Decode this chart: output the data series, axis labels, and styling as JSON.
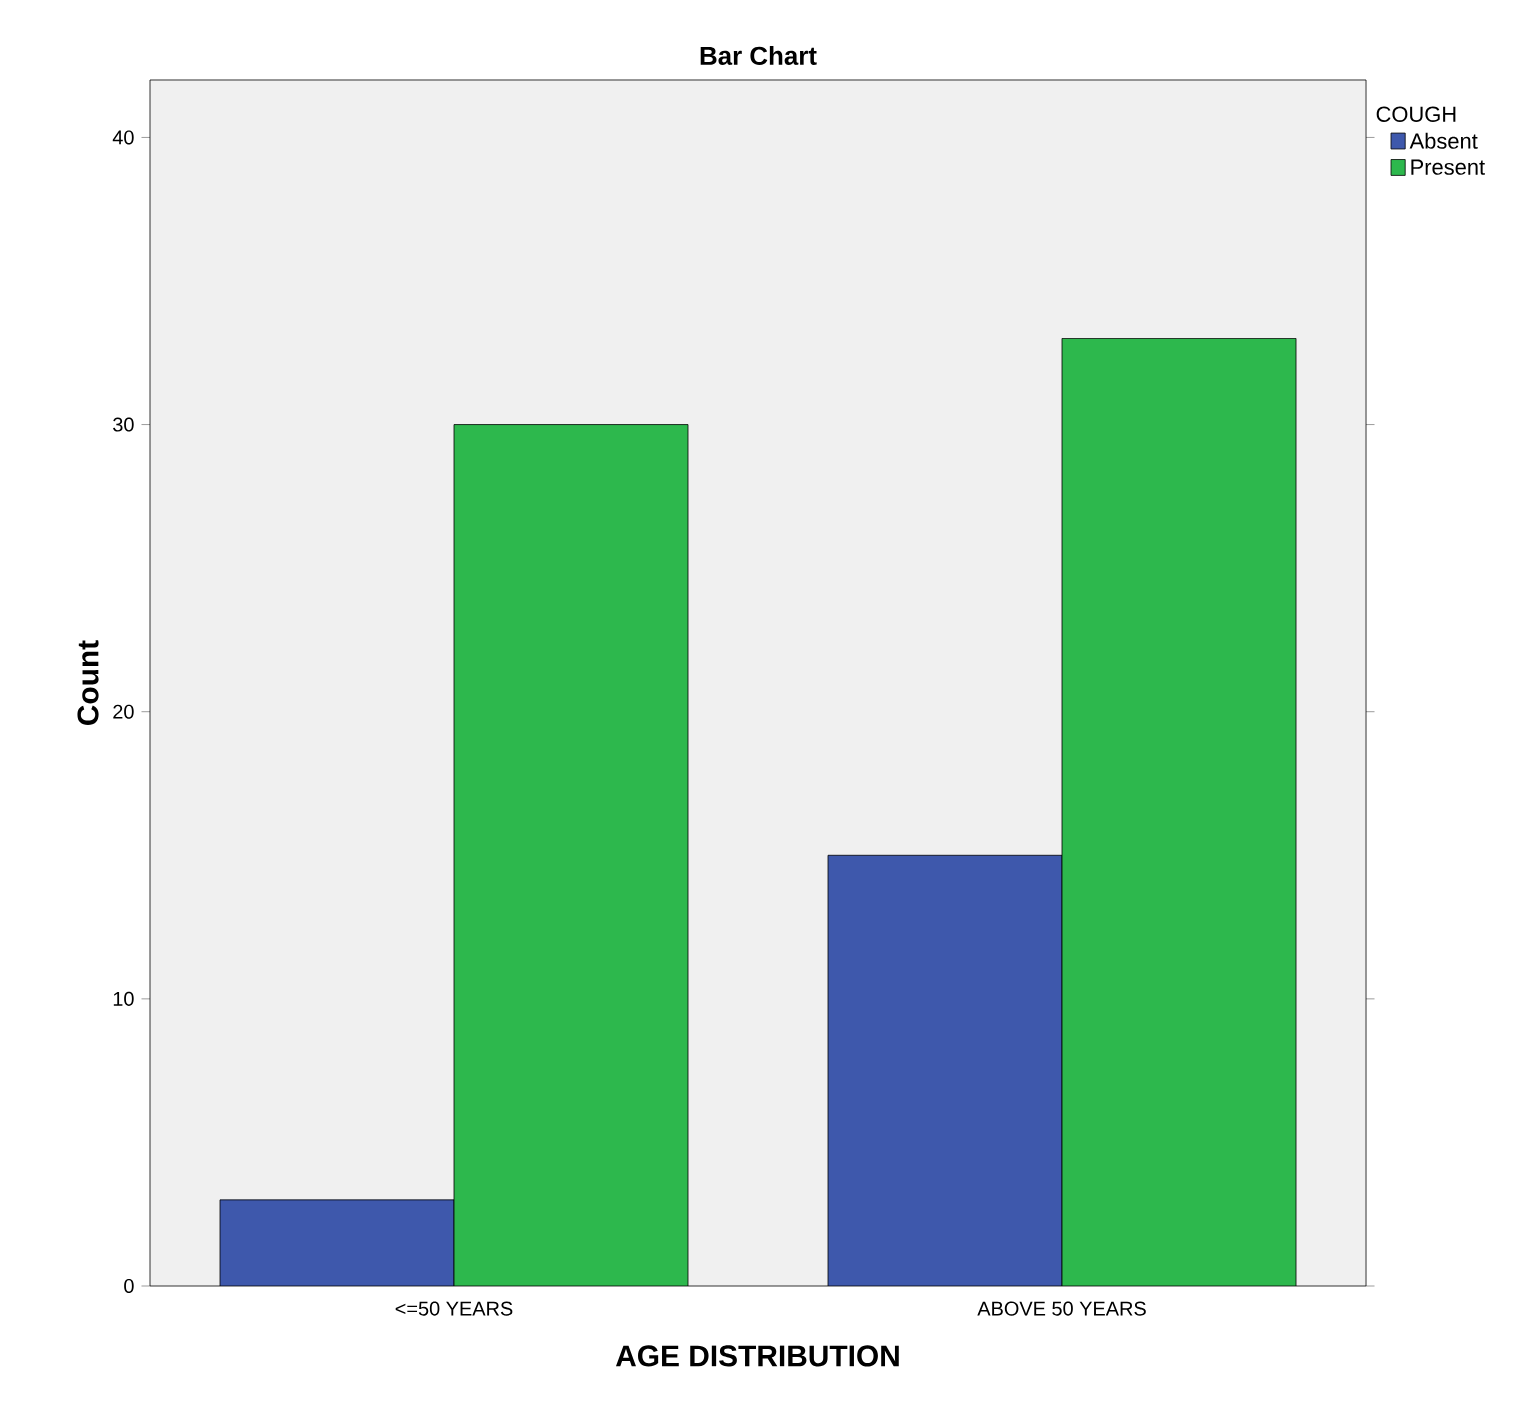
{
  "chart_data": {
    "type": "bar",
    "title": "Bar Chart",
    "xlabel": "AGE DISTRIBUTION",
    "ylabel": "Count",
    "legend_title": "COUGH",
    "categories": [
      "<=50 YEARS",
      "ABOVE 50 YEARS"
    ],
    "series": [
      {
        "name": "Absent",
        "color": "#3e58ac",
        "values": [
          3,
          15
        ]
      },
      {
        "name": "Present",
        "color": "#2db84d",
        "values": [
          30,
          33
        ]
      }
    ],
    "ylim": [
      0,
      42
    ],
    "yticks": [
      0,
      10,
      20,
      30,
      40
    ],
    "grid": false,
    "legend": "top right"
  }
}
